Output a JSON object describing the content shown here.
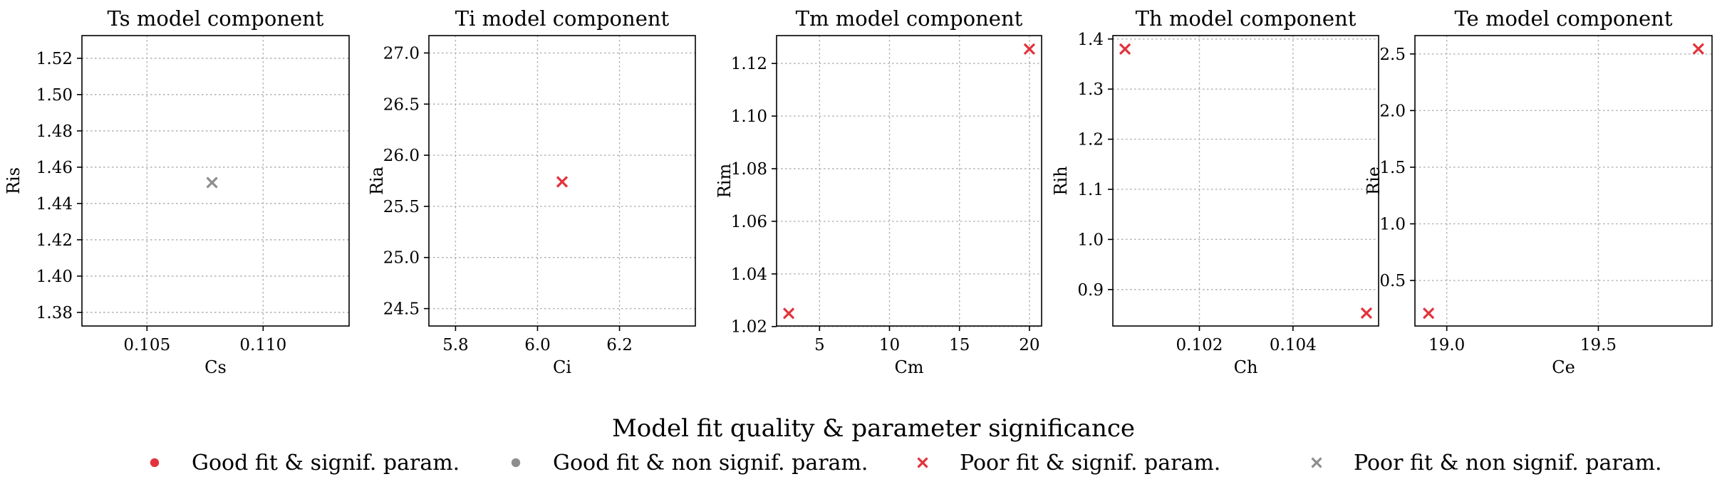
{
  "colors": {
    "significant": "#e3323b",
    "non_significant": "#8e8e8e"
  },
  "chart_data": [
    {
      "type": "scatter",
      "title": "Ts model component",
      "xlabel": "Cs",
      "ylabel": "Ris",
      "xlim": [
        0.1022,
        0.1137
      ],
      "ylim": [
        1.3725,
        1.5325
      ],
      "xticks": [
        0.105,
        0.11
      ],
      "xtick_labels": [
        "0.105",
        "0.110"
      ],
      "yticks": [
        1.38,
        1.4,
        1.42,
        1.44,
        1.46,
        1.48,
        1.5,
        1.52
      ],
      "ytick_labels": [
        "1.38",
        "1.40",
        "1.42",
        "1.44",
        "1.46",
        "1.48",
        "1.50",
        "1.52"
      ],
      "grid": true,
      "points": [
        {
          "x": 0.1078,
          "y": 1.4515,
          "category": "poor_nonsig"
        }
      ]
    },
    {
      "type": "scatter",
      "title": "Ti model component",
      "xlabel": "Ci",
      "ylabel": "Ria",
      "xlim": [
        5.735,
        6.385
      ],
      "ylim": [
        24.33,
        27.17
      ],
      "xticks": [
        5.8,
        6.0,
        6.2
      ],
      "xtick_labels": [
        "5.8",
        "6.0",
        "6.2"
      ],
      "yticks": [
        24.5,
        25.0,
        25.5,
        26.0,
        26.5,
        27.0
      ],
      "ytick_labels": [
        "24.5",
        "25.0",
        "25.5",
        "26.0",
        "26.5",
        "27.0"
      ],
      "grid": true,
      "points": [
        {
          "x": 6.06,
          "y": 25.74,
          "category": "poor_sig"
        }
      ]
    },
    {
      "type": "scatter",
      "title": "Tm model component",
      "xlabel": "Cm",
      "ylabel": "Rim",
      "xlim": [
        1.93,
        20.87
      ],
      "ylim": [
        1.0202,
        1.1306
      ],
      "xticks": [
        5,
        10,
        15,
        20
      ],
      "xtick_labels": [
        "5",
        "10",
        "15",
        "20"
      ],
      "yticks": [
        1.02,
        1.04,
        1.06,
        1.08,
        1.1,
        1.12
      ],
      "ytick_labels": [
        "1.02",
        "1.04",
        "1.06",
        "1.08",
        "1.10",
        "1.12"
      ],
      "grid": true,
      "points": [
        {
          "x": 2.8,
          "y": 1.025,
          "category": "poor_sig"
        },
        {
          "x": 20.0,
          "y": 1.1255,
          "category": "poor_sig"
        }
      ]
    },
    {
      "type": "scatter",
      "title": "Th model component",
      "xlabel": "Ch",
      "ylabel": "Rih",
      "xlim": [
        0.10015,
        0.10583
      ],
      "ylim": [
        0.8272,
        1.4068
      ],
      "xticks": [
        0.102,
        0.104
      ],
      "xtick_labels": [
        "0.102",
        "0.104"
      ],
      "yticks": [
        0.9,
        1.0,
        1.1,
        1.2,
        1.3,
        1.4
      ],
      "ytick_labels": [
        "0.9",
        "1.0",
        "1.1",
        "1.2",
        "1.3",
        "1.4"
      ],
      "grid": true,
      "points": [
        {
          "x": 0.10041,
          "y": 1.38,
          "category": "poor_sig"
        },
        {
          "x": 0.10557,
          "y": 0.853,
          "category": "poor_sig"
        }
      ]
    },
    {
      "type": "scatter",
      "title": "Te model component",
      "xlabel": "Ce",
      "ylabel": "Rie",
      "xlim": [
        18.895,
        19.875
      ],
      "ylim": [
        0.098,
        2.662
      ],
      "xticks": [
        19.0,
        19.5
      ],
      "xtick_labels": [
        "19.0",
        "19.5"
      ],
      "yticks": [
        0.5,
        1.0,
        1.5,
        2.0,
        2.5
      ],
      "ytick_labels": [
        "0.5",
        "1.0",
        "1.5",
        "2.0",
        "2.5"
      ],
      "grid": true,
      "points": [
        {
          "x": 18.94,
          "y": 0.21,
          "category": "poor_sig"
        },
        {
          "x": 19.83,
          "y": 2.545,
          "category": "poor_sig"
        }
      ]
    }
  ],
  "legend": {
    "title": "Model fit quality & parameter significance",
    "placement": "bottom-center",
    "entries": [
      {
        "label": "Good fit & signif. param.",
        "marker": "circle",
        "color": "#e3323b"
      },
      {
        "label": "Good fit & non signif. param.",
        "marker": "circle",
        "color": "#8e8e8e"
      },
      {
        "label": "Poor fit & signif. param.",
        "marker": "x",
        "color": "#e3323b"
      },
      {
        "label": "Poor fit & non signif. param.",
        "marker": "x",
        "color": "#8e8e8e"
      }
    ]
  }
}
